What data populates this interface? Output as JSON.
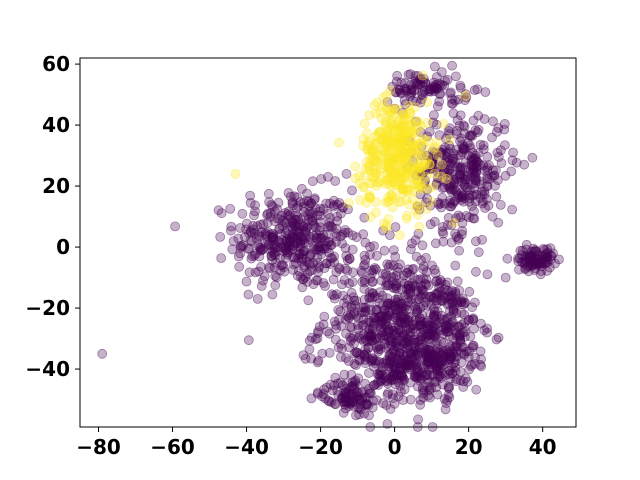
{
  "chart_data": {
    "type": "scatter",
    "title": "",
    "xlabel": "",
    "ylabel": "",
    "xlim": [
      -85,
      49
    ],
    "ylim": [
      -59,
      62
    ],
    "x_ticks": [
      -80,
      -60,
      -40,
      -20,
      0,
      20,
      40
    ],
    "y_ticks": [
      -40,
      -20,
      0,
      20,
      40,
      60
    ],
    "x_tick_labels": [
      "−80",
      "−60",
      "−40",
      "−20",
      "0",
      "20",
      "40"
    ],
    "y_tick_labels": [
      "−40",
      "−20",
      "0",
      "20",
      "40",
      "60"
    ],
    "grid": false,
    "legend": null,
    "marker_alpha": 0.3,
    "series": [
      {
        "color": "#440154",
        "clusters": [
          {
            "cx": -27,
            "cy": 3,
            "sx": 8,
            "sy": 8,
            "n": 380
          },
          {
            "cx": -2,
            "cy": -25,
            "sx": 9,
            "sy": 12,
            "n": 520
          },
          {
            "cx": 12,
            "cy": -28,
            "sx": 7,
            "sy": 10,
            "n": 300
          },
          {
            "cx": 18,
            "cy": 25,
            "sx": 6,
            "sy": 10,
            "n": 320
          },
          {
            "cx": 8,
            "cy": 52,
            "sx": 5,
            "sy": 3,
            "n": 90
          },
          {
            "cx": 38,
            "cy": -4,
            "sx": 2.5,
            "sy": 2,
            "n": 90
          },
          {
            "cx": -12,
            "cy": -49,
            "sx": 3.5,
            "sy": 2.5,
            "n": 90
          },
          {
            "cx": 6,
            "cy": -40,
            "sx": 6,
            "sy": 5,
            "n": 150
          }
        ],
        "outliers": [
          [
            -79,
            -35
          ],
          [
            -37,
            -17
          ],
          [
            30,
            -10
          ],
          [
            35,
            27
          ],
          [
            32,
            31
          ],
          [
            28,
            8
          ],
          [
            -13,
            24
          ],
          [
            -18,
            23
          ]
        ]
      },
      {
        "color": "#fde725",
        "clusters": [
          {
            "cx": 1,
            "cy": 30,
            "sx": 5,
            "sy": 9,
            "n": 380
          }
        ],
        "outliers": [
          [
            -43,
            24
          ],
          [
            -3,
            49
          ],
          [
            16,
            8
          ]
        ]
      }
    ]
  }
}
